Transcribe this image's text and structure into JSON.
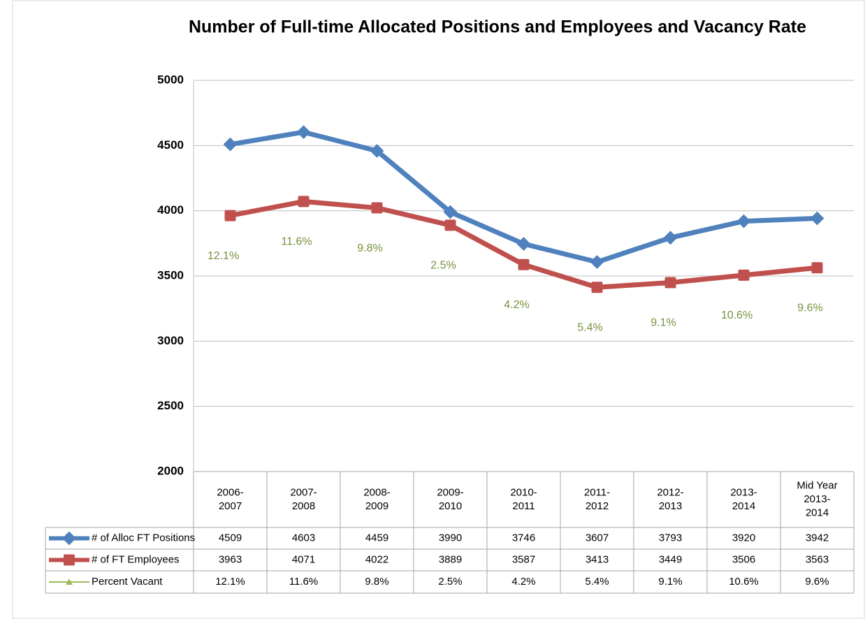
{
  "chart_data": {
    "type": "line",
    "title": "Number of Full-time Allocated Positions and  Employees and Vacancy Rate",
    "categories": [
      "2006-\n2007",
      "2007-\n2008",
      "2008-\n2009",
      "2009-\n2010",
      "2010-\n2011",
      "2011-\n2012",
      "2012-\n2013",
      "2013-\n2014",
      "Mid Year\n2013-\n2014"
    ],
    "series": [
      {
        "name": "# of Alloc FT Positions",
        "color": "#4f81bd",
        "values": [
          4509,
          4603,
          4459,
          3990,
          3746,
          3607,
          3793,
          3920,
          3942
        ]
      },
      {
        "name": "# of FT Employees",
        "color": "#c0504d",
        "values": [
          3963,
          4071,
          4022,
          3889,
          3587,
          3413,
          3449,
          3506,
          3563
        ]
      },
      {
        "name": "Percent Vacant",
        "color": "#9bbb59",
        "values": [
          12.1,
          11.6,
          9.8,
          2.5,
          4.2,
          5.4,
          9.1,
          10.6,
          9.6
        ],
        "value_labels": [
          "12.1%",
          "11.6%",
          "9.8%",
          "2.5%",
          "4.2%",
          "5.4%",
          "9.1%",
          "10.6%",
          "9.6%"
        ]
      }
    ],
    "ylim": [
      2000,
      5000
    ],
    "yticks": [
      2000,
      2500,
      3000,
      3500,
      4000,
      4500,
      5000
    ],
    "grid": true
  }
}
